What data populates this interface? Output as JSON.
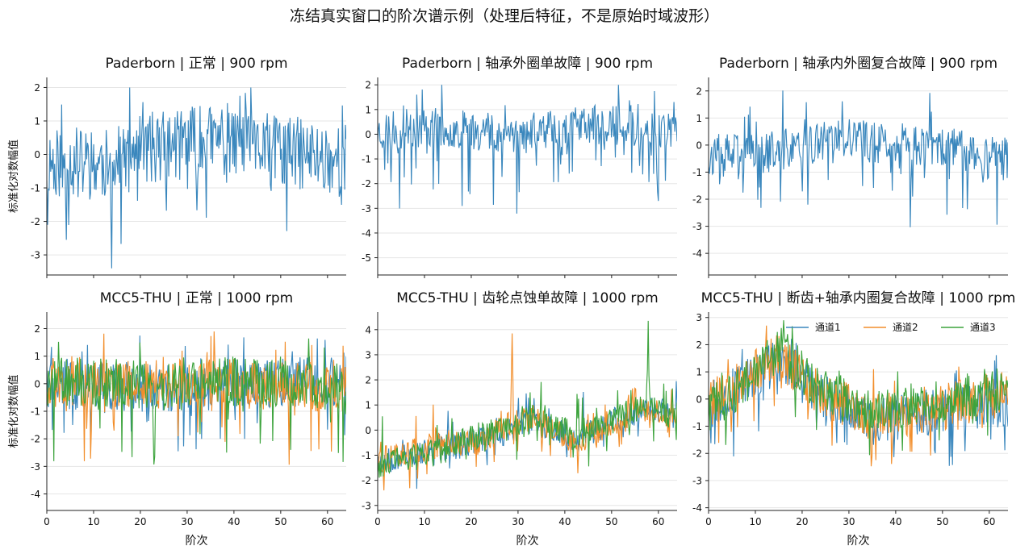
{
  "figure": {
    "suptitle": "冻结真实窗口的阶次谱示例（处理后特征，不是原始时域波形）",
    "ylabel": "标准化对数幅值",
    "xlabel": "阶次",
    "colors": {
      "c1": "#3a87bd",
      "c2": "#f28e2b",
      "c3": "#3ca33c",
      "grid": "#e6e6e6",
      "axis": "#222222"
    }
  },
  "chart_data": [
    {
      "type": "line",
      "title": "Paderborn | 正常 | 900 rpm",
      "xlim": [
        0,
        64
      ],
      "ylim": [
        -3.6,
        2.3
      ],
      "yticks": [
        2,
        1,
        0,
        -1,
        -2,
        -3
      ],
      "xticks": [
        0,
        10,
        20,
        30,
        40,
        50,
        60
      ],
      "xticklabels_visible": false,
      "ylabel": "标准化对数幅值",
      "xlabel": "",
      "grid": "horizontal",
      "series": [
        {
          "color": "#3a87bd",
          "seed": 11,
          "n": 384,
          "base": [
            [
              0,
              -0.2
            ],
            [
              14,
              -0.3
            ],
            [
              22,
              0.2
            ],
            [
              36,
              0.4
            ],
            [
              50,
              0.1
            ],
            [
              64,
              -0.2
            ]
          ],
          "amp": 1.1,
          "spikeDown": 2.2,
          "spikeUp": 1.6,
          "clip": [
            -3.4,
            2.0
          ]
        }
      ]
    },
    {
      "type": "line",
      "title": "Paderborn | 轴承外圈单故障 | 900 rpm",
      "xlim": [
        0,
        64
      ],
      "ylim": [
        -5.7,
        2.3
      ],
      "yticks": [
        2,
        1,
        0,
        -1,
        -2,
        -3,
        -4,
        -5
      ],
      "xticks": [
        0,
        10,
        20,
        30,
        40,
        50,
        60
      ],
      "xticklabels_visible": false,
      "ylabel": "",
      "xlabel": "",
      "grid": "horizontal",
      "series": [
        {
          "color": "#3a87bd",
          "seed": 23,
          "n": 384,
          "base": [
            [
              0,
              0.1
            ],
            [
              10,
              0.3
            ],
            [
              30,
              0.0
            ],
            [
              45,
              0.4
            ],
            [
              64,
              0.2
            ]
          ],
          "amp": 0.8,
          "spikeDown": 2.8,
          "spikeUp": 1.3,
          "clip": [
            -4.1,
            2.0
          ]
        }
      ]
    },
    {
      "type": "line",
      "title": "Paderborn | 轴承内外圈复合故障 | 900 rpm",
      "xlim": [
        0,
        64
      ],
      "ylim": [
        -4.8,
        2.5
      ],
      "yticks": [
        2,
        1,
        0,
        -1,
        -2,
        -3,
        -4
      ],
      "xticks": [
        0,
        10,
        20,
        30,
        40,
        50,
        60
      ],
      "xticklabels_visible": false,
      "ylabel": "",
      "xlabel": "",
      "grid": "horizontal",
      "series": [
        {
          "color": "#3a87bd",
          "seed": 37,
          "n": 384,
          "base": [
            [
              0,
              -0.4
            ],
            [
              10,
              -0.3
            ],
            [
              30,
              0.2
            ],
            [
              50,
              -0.1
            ],
            [
              64,
              -0.6
            ]
          ],
          "amp": 0.8,
          "spikeDown": 2.4,
          "spikeUp": 1.5,
          "clip": [
            -3.8,
            2.2
          ]
        }
      ]
    },
    {
      "type": "line",
      "title": "MCC5-THU | 正常 | 1000 rpm",
      "xlim": [
        0,
        64
      ],
      "ylim": [
        -4.6,
        2.6
      ],
      "yticks": [
        2,
        1,
        0,
        -1,
        -2,
        -3,
        -4
      ],
      "xticks": [
        0,
        10,
        20,
        30,
        40,
        50,
        60
      ],
      "xticklabels_visible": true,
      "ylabel": "标准化对数幅值",
      "xlabel": "阶次",
      "grid": "horizontal",
      "series": [
        {
          "color": "#3a87bd",
          "seed": 41,
          "n": 384,
          "base": [
            [
              0,
              0.0
            ],
            [
              20,
              -0.2
            ],
            [
              40,
              0.0
            ],
            [
              64,
              0.1
            ]
          ],
          "amp": 0.9,
          "spikeDown": 2.2,
          "spikeUp": 1.2,
          "clip": [
            -3.9,
            2.1
          ]
        },
        {
          "color": "#f28e2b",
          "seed": 43,
          "n": 384,
          "base": [
            [
              0,
              0.1
            ],
            [
              20,
              0.0
            ],
            [
              40,
              0.0
            ],
            [
              64,
              -0.2
            ]
          ],
          "amp": 0.9,
          "spikeDown": 2.4,
          "spikeUp": 1.2,
          "clip": [
            -3.6,
            2.1
          ]
        },
        {
          "color": "#3ca33c",
          "seed": 47,
          "n": 384,
          "base": [
            [
              0,
              0.1
            ],
            [
              20,
              0.0
            ],
            [
              40,
              0.1
            ],
            [
              64,
              -0.1
            ]
          ],
          "amp": 0.9,
          "spikeDown": 2.6,
          "spikeUp": 1.3,
          "clip": [
            -4.3,
            2.2
          ]
        }
      ]
    },
    {
      "type": "line",
      "title": "MCC5-THU | 齿轮点蚀单故障 | 1000 rpm",
      "xlim": [
        0,
        64
      ],
      "ylim": [
        -3.2,
        4.7
      ],
      "yticks": [
        4,
        3,
        2,
        1,
        0,
        -1,
        -2,
        -3
      ],
      "xticks": [
        0,
        10,
        20,
        30,
        40,
        50,
        60
      ],
      "xticklabels_visible": true,
      "ylabel": "",
      "xlabel": "阶次",
      "grid": "horizontal",
      "series": [
        {
          "color": "#3a87bd",
          "seed": 53,
          "n": 384,
          "base": [
            [
              0,
              -1.2
            ],
            [
              12,
              -0.8
            ],
            [
              22,
              -0.4
            ],
            [
              28,
              0.0
            ],
            [
              32,
              0.4
            ],
            [
              42,
              -0.3
            ],
            [
              50,
              0.3
            ],
            [
              58,
              0.8
            ],
            [
              64,
              0.6
            ]
          ],
          "amp": 0.55,
          "spikeDown": 1.0,
          "spikeUp": 1.4,
          "clip": [
            -2.5,
            2.2
          ],
          "peaks": []
        },
        {
          "color": "#f28e2b",
          "seed": 59,
          "n": 384,
          "base": [
            [
              0,
              -1.2
            ],
            [
              12,
              -0.6
            ],
            [
              22,
              -0.4
            ],
            [
              28,
              0.2
            ],
            [
              32,
              0.6
            ],
            [
              42,
              -0.5
            ],
            [
              50,
              0.2
            ],
            [
              58,
              0.9
            ],
            [
              64,
              0.4
            ]
          ],
          "amp": 0.55,
          "spikeDown": 1.0,
          "spikeUp": 1.2,
          "clip": [
            -2.4,
            3.9
          ],
          "peaks": [
            [
              28.8,
              3.85
            ]
          ]
        },
        {
          "color": "#3ca33c",
          "seed": 61,
          "n": 384,
          "base": [
            [
              0,
              -1.4
            ],
            [
              12,
              -0.9
            ],
            [
              22,
              -0.2
            ],
            [
              28,
              0.0
            ],
            [
              32,
              0.6
            ],
            [
              42,
              -0.2
            ],
            [
              50,
              0.4
            ],
            [
              58,
              1.0
            ],
            [
              64,
              0.5
            ]
          ],
          "amp": 0.55,
          "spikeDown": 1.1,
          "spikeUp": 1.5,
          "clip": [
            -2.6,
            4.4
          ],
          "peaks": [
            [
              57.9,
              4.35
            ]
          ]
        }
      ]
    },
    {
      "type": "line",
      "title": "MCC5-THU | 断齿+轴承内圈复合故障 | 1000 rpm",
      "xlim": [
        0,
        64
      ],
      "ylim": [
        -4.1,
        3.2
      ],
      "yticks": [
        3,
        2,
        1,
        0,
        -1,
        -2,
        -3,
        -4
      ],
      "xticks": [
        0,
        10,
        20,
        30,
        40,
        50,
        60
      ],
      "xticklabels_visible": true,
      "ylabel": "",
      "xlabel": "阶次",
      "grid": "horizontal",
      "legend": {
        "placement": "top-right",
        "entries": [
          "通道1",
          "通道2",
          "通道3"
        ]
      },
      "series": [
        {
          "name": "通道1",
          "color": "#3a87bd",
          "seed": 67,
          "n": 384,
          "base": [
            [
              0,
              -0.2
            ],
            [
              8,
              0.6
            ],
            [
              15,
              1.5
            ],
            [
              22,
              0.4
            ],
            [
              35,
              -0.8
            ],
            [
              50,
              -0.4
            ],
            [
              64,
              -0.2
            ]
          ],
          "amp": 0.85,
          "spikeDown": 1.7,
          "spikeUp": 1.2,
          "clip": [
            -3.4,
            2.8
          ]
        },
        {
          "name": "通道2",
          "color": "#f28e2b",
          "seed": 71,
          "n": 384,
          "base": [
            [
              0,
              -0.2
            ],
            [
              8,
              0.7
            ],
            [
              15,
              1.7
            ],
            [
              22,
              0.4
            ],
            [
              35,
              -0.7
            ],
            [
              50,
              -0.3
            ],
            [
              64,
              0.3
            ]
          ],
          "amp": 0.85,
          "spikeDown": 1.8,
          "spikeUp": 1.2,
          "clip": [
            -3.6,
            2.7
          ]
        },
        {
          "name": "通道3",
          "color": "#3ca33c",
          "seed": 73,
          "n": 384,
          "base": [
            [
              0,
              -0.4
            ],
            [
              8,
              0.6
            ],
            [
              15,
              1.9
            ],
            [
              22,
              0.6
            ],
            [
              35,
              -0.6
            ],
            [
              50,
              0.0
            ],
            [
              64,
              0.4
            ]
          ],
          "amp": 0.85,
          "spikeDown": 1.8,
          "spikeUp": 1.2,
          "clip": [
            -3.8,
            2.9
          ]
        }
      ]
    }
  ]
}
